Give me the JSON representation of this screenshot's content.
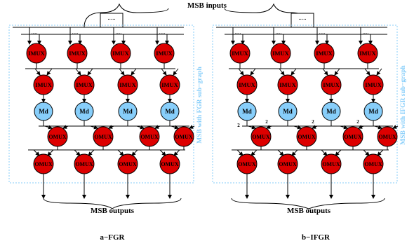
{
  "title_inputs": "MSB inputs",
  "title_outputs": "MSB outputs",
  "dots": ".....",
  "node_labels": {
    "imux": "IMUX",
    "md": "Md",
    "omux": "OMUX"
  },
  "port_label": "2",
  "panels": [
    {
      "id": "fgr",
      "caption": "a−FGR",
      "side_label": "MSB with FGR sub−graph"
    },
    {
      "id": "ifgr",
      "caption": "b−IFGR",
      "side_label": "MSB with IFGR sub−graph"
    }
  ],
  "colors": {
    "mux_fill": "#dd0000",
    "md_fill": "#87cefa",
    "edge": "#000000",
    "frame": "#87cefa",
    "side_text": "#87cefa"
  }
}
